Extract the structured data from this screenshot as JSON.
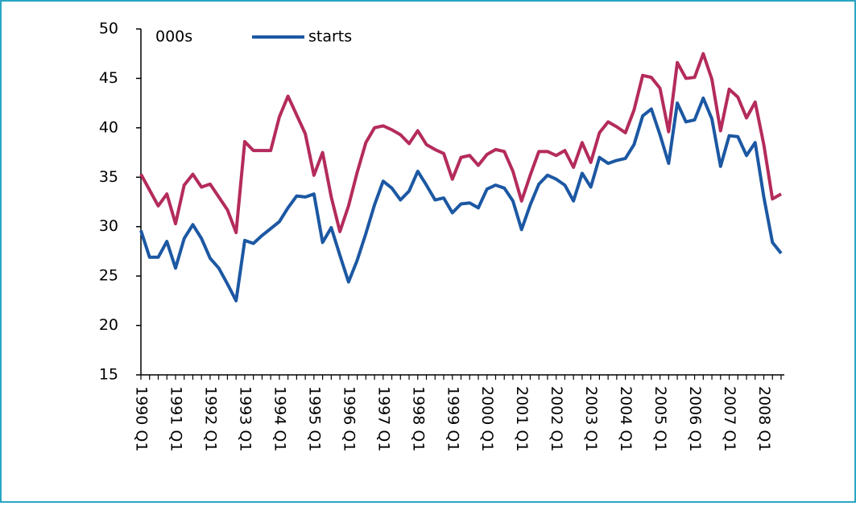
{
  "chart_data": {
    "type": "line",
    "annotation": "000s",
    "categories": [
      "1990 Q1",
      null,
      null,
      null,
      "1991 Q1",
      null,
      null,
      null,
      "1992 Q1",
      null,
      null,
      null,
      "1993 Q1",
      null,
      null,
      null,
      "1994 Q1",
      null,
      null,
      null,
      "1995 Q1",
      null,
      null,
      null,
      "1996 Q1",
      null,
      null,
      null,
      "1997 Q1",
      null,
      null,
      null,
      "1998 Q1",
      null,
      null,
      null,
      "1999 Q1",
      null,
      null,
      null,
      "2000 Q1",
      null,
      null,
      null,
      "2001 Q1",
      null,
      null,
      null,
      "2002 Q1",
      null,
      null,
      null,
      "2003 Q1",
      null,
      null,
      null,
      "2004 Q1",
      null,
      null,
      null,
      "2005 Q1",
      null,
      null,
      null,
      "2006 Q1",
      null,
      null,
      null,
      "2007 Q1",
      null,
      null,
      null,
      "2008 Q1",
      null,
      null
    ],
    "series": [
      {
        "name": "starts",
        "color": "#1c58a3",
        "values": [
          29.6,
          26.9,
          26.9,
          28.5,
          25.8,
          28.8,
          30.2,
          28.8,
          26.8,
          25.8,
          24.2,
          22.5,
          28.6,
          28.3,
          29.1,
          29.8,
          30.5,
          31.9,
          33.1,
          33.0,
          33.3,
          28.4,
          29.9,
          27.1,
          24.4,
          26.6,
          29.3,
          32.2,
          34.6,
          33.9,
          32.7,
          33.6,
          35.6,
          34.2,
          32.7,
          32.9,
          31.4,
          32.3,
          32.4,
          31.9,
          33.8,
          34.2,
          33.9,
          32.6,
          29.7,
          32.2,
          34.3,
          35.2,
          34.8,
          34.2,
          32.6,
          35.4,
          34.0,
          37.0,
          36.4,
          36.7,
          36.9,
          38.3,
          41.2,
          41.9,
          39.3,
          36.4,
          42.5,
          40.6,
          40.8,
          43.0,
          40.9,
          36.1,
          39.2,
          39.1,
          37.2,
          38.5,
          33.0,
          28.4,
          27.3
        ]
      },
      {
        "color": "#b42b5c",
        "values": [
          35.3,
          33.7,
          32.1,
          33.3,
          30.3,
          34.2,
          35.3,
          34.0,
          34.3,
          33.0,
          31.7,
          29.4,
          38.6,
          37.7,
          37.7,
          37.7,
          41.1,
          43.2,
          41.3,
          39.4,
          35.2,
          37.5,
          33.0,
          29.5,
          32.1,
          35.5,
          38.5,
          40.0,
          40.2,
          39.8,
          39.3,
          38.4,
          39.7,
          38.3,
          37.8,
          37.4,
          34.8,
          37.0,
          37.2,
          36.2,
          37.3,
          37.8,
          37.6,
          35.6,
          32.6,
          35.2,
          37.6,
          37.6,
          37.2,
          37.7,
          36.0,
          38.5,
          36.5,
          39.5,
          40.6,
          40.1,
          39.5,
          41.8,
          45.3,
          45.1,
          44.0,
          39.6,
          46.6,
          45.0,
          45.1,
          47.5,
          44.9,
          39.7,
          43.9,
          43.1,
          41.0,
          42.6,
          38.3,
          32.8,
          33.3
        ]
      }
    ],
    "ylim": [
      15,
      50
    ],
    "yticks": [
      15,
      20,
      25,
      30,
      35,
      40,
      45,
      50
    ]
  }
}
